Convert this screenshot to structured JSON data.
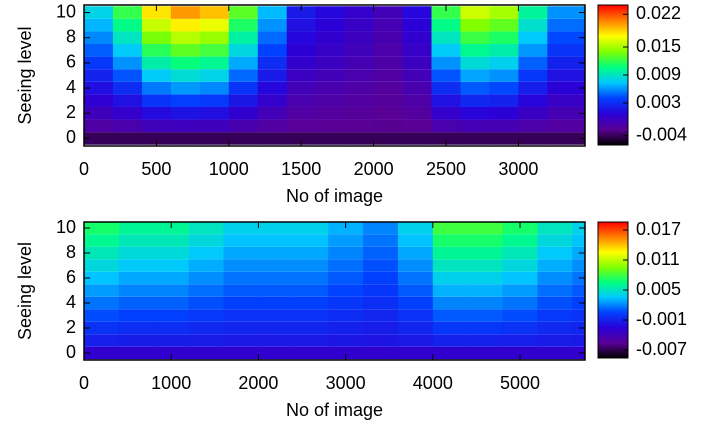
{
  "chart_data": [
    {
      "type": "heatmap",
      "xlabel": "No of image",
      "ylabel": "Seeing level",
      "xlim": [
        0,
        3460
      ],
      "ylim": [
        -0.6,
        10.6
      ],
      "xticks": [
        0,
        500,
        1000,
        1500,
        2000,
        2500,
        3000
      ],
      "yticks": [
        0,
        2,
        4,
        6,
        8,
        10
      ],
      "zlim": [
        -0.006,
        0.024
      ],
      "zticks": [
        0.022,
        0.015,
        0.009,
        0.003,
        -0.004
      ],
      "colormap": [
        "#000000",
        "#5a0096",
        "#2a00d8",
        "#0040ff",
        "#00c8ff",
        "#00ff80",
        "#80ff00",
        "#ffff00",
        "#ff8000",
        "#ff0000"
      ],
      "xbins": [
        0,
        200,
        400,
        600,
        800,
        1000,
        1200,
        1400,
        1600,
        1800,
        2000,
        2200,
        2400,
        2600,
        2800,
        3000,
        3200,
        3400,
        3460
      ],
      "levels": [
        0,
        1,
        2,
        3,
        4,
        5,
        6,
        7,
        8,
        9,
        10
      ],
      "z": [
        [
          -0.004,
          -0.0019,
          -0.0008,
          0.0003,
          0.0014,
          0.0025,
          0.0036,
          0.0047,
          0.0058,
          0.0069,
          0.008
        ],
        [
          -0.004,
          -0.0015,
          0,
          0.0015,
          0.003,
          0.0045,
          0.006,
          0.0075,
          0.009,
          0.0105,
          0.012
        ],
        [
          -0.004,
          -0.0009,
          0.0012,
          0.0033,
          0.0054,
          0.0075,
          0.0096,
          0.0117,
          0.0138,
          0.0159,
          0.018
        ],
        [
          -0.004,
          -0.0007,
          0.0016,
          0.0039,
          0.0062,
          0.0085,
          0.0108,
          0.0131,
          0.0154,
          0.0177,
          0.02
        ],
        [
          -0.004,
          -0.0008,
          0.0014,
          0.0036,
          0.0058,
          0.008,
          0.0102,
          0.0124,
          0.0146,
          0.0168,
          0.019
        ],
        [
          -0.004,
          -0.0014,
          0.0002,
          0.0018,
          0.0034,
          0.005,
          0.0066,
          0.0082,
          0.0098,
          0.0114,
          0.013
        ],
        [
          -0.004,
          -0.002,
          -0.001,
          0,
          0.001,
          0.002,
          0.003,
          0.004,
          0.005,
          0.006,
          0.007
        ],
        [
          -0.004,
          -0.0025,
          -0.002,
          -0.0015,
          -0.001,
          -0.0005,
          0,
          0.0005,
          0.001,
          0.0015,
          0.002
        ],
        [
          -0.004,
          -0.0026,
          -0.0022,
          -0.0018,
          -0.0014,
          -0.001,
          -0.0006,
          -0.0002,
          0.0002,
          0.0006,
          0.001
        ],
        [
          -0.004,
          -0.0027,
          -0.0024,
          -0.0021,
          -0.0018,
          -0.0015,
          -0.0012,
          -0.0009,
          -0.0006,
          -0.0003,
          0
        ],
        [
          -0.004,
          -0.0028,
          -0.0026,
          -0.0024,
          -0.0022,
          -0.002,
          -0.0018,
          -0.0016,
          -0.0014,
          -0.0012,
          -0.001
        ],
        [
          -0.004,
          -0.0026,
          -0.0022,
          -0.0018,
          -0.0014,
          -0.001,
          -0.0006,
          -0.0002,
          0.0002,
          0.0006,
          0.001
        ],
        [
          -0.004,
          -0.0015,
          0,
          0.0015,
          0.003,
          0.0045,
          0.006,
          0.0075,
          0.009,
          0.0105,
          0.012
        ],
        [
          -0.004,
          -0.0011,
          0.0008,
          0.0027,
          0.0046,
          0.0065,
          0.0084,
          0.0103,
          0.0122,
          0.0141,
          0.016
        ],
        [
          -0.004,
          -0.0012,
          0.0006,
          0.0024,
          0.0042,
          0.006,
          0.0078,
          0.0096,
          0.0114,
          0.0132,
          0.015
        ],
        [
          -0.004,
          -0.0017,
          -0.0004,
          0.0009,
          0.0022,
          0.0035,
          0.0048,
          0.0061,
          0.0074,
          0.0087,
          0.01
        ],
        [
          -0.004,
          -0.0021,
          -0.0012,
          -0.0003,
          0.0006,
          0.0015,
          0.0024,
          0.0033,
          0.0042,
          0.0051,
          0.006
        ],
        [
          -0.004,
          -0.0021,
          -0.0012,
          -0.0003,
          0.0006,
          0.0015,
          0.0024,
          0.0033,
          0.0042,
          0.0051,
          0.006
        ]
      ]
    },
    {
      "type": "heatmap",
      "xlabel": "No of image",
      "ylabel": "Seeing level",
      "xlim": [
        0,
        5745
      ],
      "ylim": [
        -0.56,
        10.48
      ],
      "xticks": [
        0,
        1000,
        2000,
        3000,
        4000,
        5000
      ],
      "yticks": [
        0,
        2,
        4,
        6,
        8,
        10
      ],
      "zlim": [
        -0.0086,
        0.0186
      ],
      "zticks": [
        0.017,
        0.011,
        0.005,
        -0.001,
        -0.007
      ],
      "colormap": [
        "#000000",
        "#5a0096",
        "#2a00d8",
        "#0040ff",
        "#00c8ff",
        "#00ff80",
        "#80ff00",
        "#ffff00",
        "#ff8000",
        "#ff0000"
      ],
      "xbins": [
        0,
        400,
        800,
        1200,
        1600,
        2000,
        2400,
        2800,
        3200,
        3600,
        4000,
        4400,
        4800,
        5200,
        5600,
        5745
      ],
      "levels": [
        0,
        1,
        2,
        3,
        4,
        5,
        6,
        7,
        8,
        9,
        10
      ],
      "z": [
        [
          -0.003,
          -0.0011,
          -0.0002,
          0.0007,
          0.0016,
          0.0025,
          0.0034,
          0.0043,
          0.0052,
          0.0061,
          0.007
        ],
        [
          -0.003,
          -0.0012,
          -0.0004,
          0.0004,
          0.0012,
          0.002,
          0.0028,
          0.0036,
          0.0044,
          0.0052,
          0.006
        ],
        [
          -0.003,
          -0.0012,
          -0.0004,
          0.0004,
          0.0012,
          0.002,
          0.0028,
          0.0036,
          0.0044,
          0.0052,
          0.006
        ],
        [
          -0.003,
          -0.0013,
          -0.0006,
          0.0001,
          0.0008,
          0.0015,
          0.0022,
          0.0029,
          0.0036,
          0.0043,
          0.005
        ],
        [
          -0.003,
          -0.0014,
          -0.0008,
          -0.0002,
          0.0004,
          0.001,
          0.0016,
          0.0022,
          0.0028,
          0.0034,
          0.004
        ],
        [
          -0.003,
          -0.0014,
          -0.0008,
          -0.0002,
          0.0004,
          0.001,
          0.0016,
          0.0022,
          0.0028,
          0.0034,
          0.004
        ],
        [
          -0.003,
          -0.0014,
          -0.0008,
          -0.0002,
          0.0004,
          0.001,
          0.0016,
          0.0022,
          0.0028,
          0.0034,
          0.004
        ],
        [
          -0.003,
          -0.0015,
          -0.001,
          -0.0005,
          0,
          0.0005,
          0.001,
          0.0015,
          0.002,
          0.0025,
          0.003
        ],
        [
          -0.003,
          -0.0016,
          -0.0012,
          -0.0008,
          -0.0004,
          0,
          0.0004,
          0.0008,
          0.0012,
          0.0016,
          0.002
        ],
        [
          -0.003,
          -0.0014,
          -0.0008,
          -0.0002,
          0.0004,
          0.001,
          0.0016,
          0.0022,
          0.0028,
          0.0034,
          0.004
        ],
        [
          -0.003,
          -0.001,
          0,
          0.001,
          0.002,
          0.003,
          0.004,
          0.005,
          0.006,
          0.007,
          0.008
        ],
        [
          -0.003,
          -0.001,
          0,
          0.001,
          0.002,
          0.003,
          0.004,
          0.005,
          0.006,
          0.007,
          0.008
        ],
        [
          -0.003,
          -0.0011,
          -0.0002,
          0.0007,
          0.0016,
          0.0025,
          0.0034,
          0.0043,
          0.0052,
          0.0061,
          0.007
        ],
        [
          -0.003,
          -0.0013,
          -0.0006,
          0.0001,
          0.0008,
          0.0015,
          0.0022,
          0.0029,
          0.0036,
          0.0043,
          0.005
        ],
        [
          -0.003,
          -0.0014,
          -0.0008,
          -0.0002,
          0.0004,
          0.001,
          0.0016,
          0.0022,
          0.0028,
          0.0034,
          0.004
        ]
      ]
    }
  ]
}
